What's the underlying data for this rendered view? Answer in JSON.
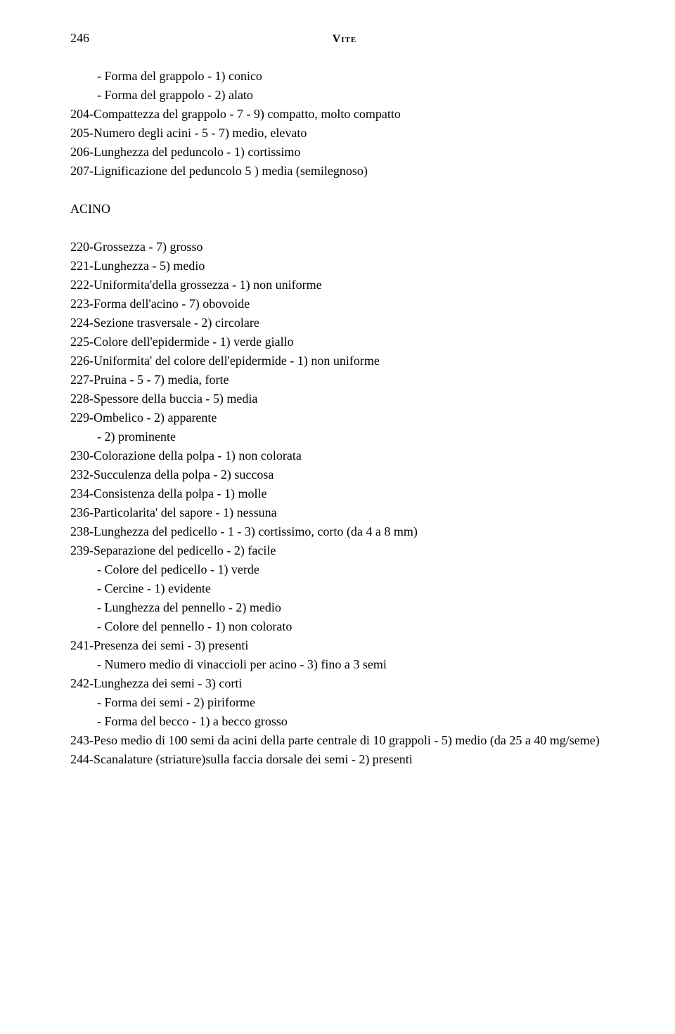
{
  "page_number": "246",
  "header": "Vite",
  "lines": [
    {
      "cls": "line sub-indent",
      "text": "- Forma del grappolo - 1) conico"
    },
    {
      "cls": "line sub-indent",
      "text": "- Forma del grappolo - 2) alato"
    },
    {
      "cls": "line",
      "text": "204-Compattezza del grappolo - 7 - 9) compatto, molto compatto"
    },
    {
      "cls": "line",
      "text": "205-Numero degli acini - 5 - 7) medio, elevato"
    },
    {
      "cls": "line",
      "text": "206-Lunghezza del peduncolo - 1) cortissimo"
    },
    {
      "cls": "line",
      "text": "207-Lignificazione del peduncolo 5 ) media (semilegnoso)"
    },
    {
      "cls": "blank",
      "text": ""
    },
    {
      "cls": "section-head",
      "text": "ACINO"
    },
    {
      "cls": "blank",
      "text": ""
    },
    {
      "cls": "line",
      "text": "220-Grossezza - 7) grosso"
    },
    {
      "cls": "line",
      "text": "221-Lunghezza - 5) medio"
    },
    {
      "cls": "line",
      "text": "222-Uniformita'della grossezza - 1) non uniforme"
    },
    {
      "cls": "line",
      "text": "223-Forma dell'acino - 7) obovoide"
    },
    {
      "cls": "line",
      "text": "224-Sezione trasversale - 2) circolare"
    },
    {
      "cls": "line",
      "text": "225-Colore dell'epidermide - 1) verde giallo"
    },
    {
      "cls": "line",
      "text": "226-Uniformita' del colore dell'epidermide - 1) non uniforme"
    },
    {
      "cls": "line",
      "text": "227-Pruina - 5 - 7) media, forte"
    },
    {
      "cls": "line",
      "text": "228-Spessore della buccia - 5) media"
    },
    {
      "cls": "line",
      "text": "229-Ombelico - 2) apparente"
    },
    {
      "cls": "line sub-indent",
      "text": "- 2) prominente"
    },
    {
      "cls": "line",
      "text": "230-Colorazione della polpa - 1) non colorata"
    },
    {
      "cls": "line",
      "text": "232-Succulenza della polpa - 2) succosa"
    },
    {
      "cls": "line",
      "text": "234-Consistenza della polpa - 1) molle"
    },
    {
      "cls": "line",
      "text": "236-Particolarita' del sapore - 1) nessuna"
    },
    {
      "cls": "line",
      "text": "238-Lunghezza del pedicello - 1 - 3) cortissimo, corto (da 4 a 8 mm)"
    },
    {
      "cls": "line",
      "text": "239-Separazione del pedicello - 2) facile"
    },
    {
      "cls": "line sub-indent",
      "text": "- Colore del pedicello - 1) verde"
    },
    {
      "cls": "line sub-indent",
      "text": "- Cercine - 1) evidente"
    },
    {
      "cls": "line sub-indent",
      "text": "- Lunghezza del pennello - 2) medio"
    },
    {
      "cls": "line sub-indent",
      "text": "- Colore del pennello - 1) non colorato"
    },
    {
      "cls": "line",
      "text": "241-Presenza  dei semi - 3) presenti"
    },
    {
      "cls": "line sub-indent",
      "text": "- Numero medio di vinaccioli per acino - 3) fino a 3 semi"
    },
    {
      "cls": "line",
      "text": "242-Lunghezza dei semi - 3) corti"
    },
    {
      "cls": "line sub-indent",
      "text": "- Forma dei semi - 2) piriforme"
    },
    {
      "cls": "line sub-indent",
      "text": "- Forma del becco - 1) a becco grosso"
    },
    {
      "cls": "line",
      "text": "243-Peso medio di 100 semi da acini della parte centrale di 10 grappoli - 5) medio (da 25 a 40 mg/seme)"
    },
    {
      "cls": "line",
      "text": "244-Scanalature (striature)sulla faccia dorsale dei semi - 2) presenti"
    }
  ]
}
